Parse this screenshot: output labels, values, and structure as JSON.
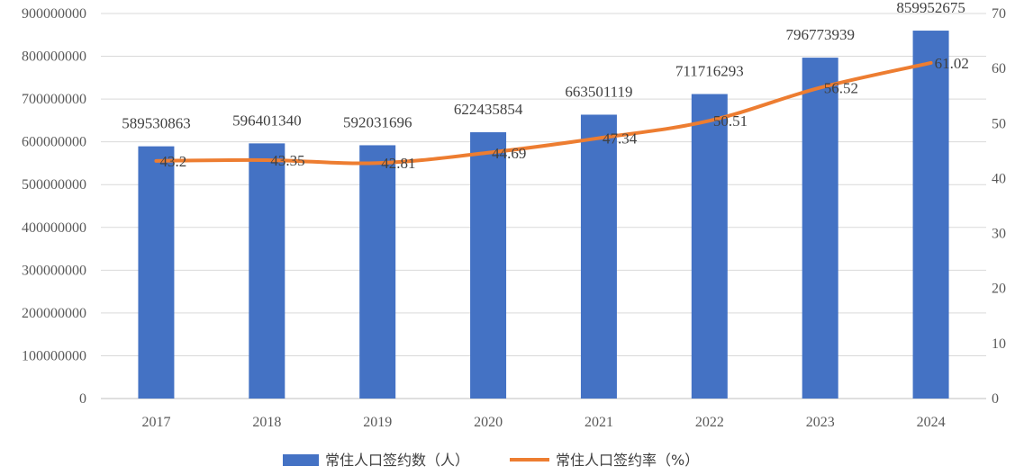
{
  "chart_data": {
    "type": "bar",
    "categories": [
      "2017",
      "2018",
      "2019",
      "2020",
      "2021",
      "2022",
      "2023",
      "2024"
    ],
    "series": [
      {
        "name": "常住人口签约数（人）",
        "type": "bar",
        "axis": "left",
        "color": "#4472C4",
        "values": [
          589530863,
          596401340,
          592031696,
          622435854,
          663501119,
          711716293,
          796773939,
          859952675
        ],
        "labels": [
          "589530863",
          "596401340",
          "592031696",
          "622435854",
          "663501119",
          "711716293",
          "796773939",
          "859952675"
        ]
      },
      {
        "name": "常住人口签约率（%）",
        "type": "line",
        "axis": "right",
        "color": "#ED7D31",
        "values": [
          43.2,
          43.35,
          42.81,
          44.69,
          47.34,
          50.51,
          56.52,
          61.02
        ],
        "labels": [
          "43.2",
          "43.35",
          "42.81",
          "44.69",
          "47.34",
          "50.51",
          "56.52",
          "61.02"
        ]
      }
    ],
    "y_left": {
      "ylim": [
        0,
        900000000
      ],
      "ticks": [
        "0",
        "100000000",
        "200000000",
        "300000000",
        "400000000",
        "500000000",
        "600000000",
        "700000000",
        "800000000",
        "900000000"
      ]
    },
    "y_right": {
      "ylim": [
        0,
        70
      ],
      "ticks": [
        "0",
        "10",
        "20",
        "30",
        "40",
        "50",
        "60",
        "70"
      ]
    },
    "grid": true,
    "legend_position": "bottom",
    "title": "",
    "xlabel": "",
    "ylabel": ""
  }
}
